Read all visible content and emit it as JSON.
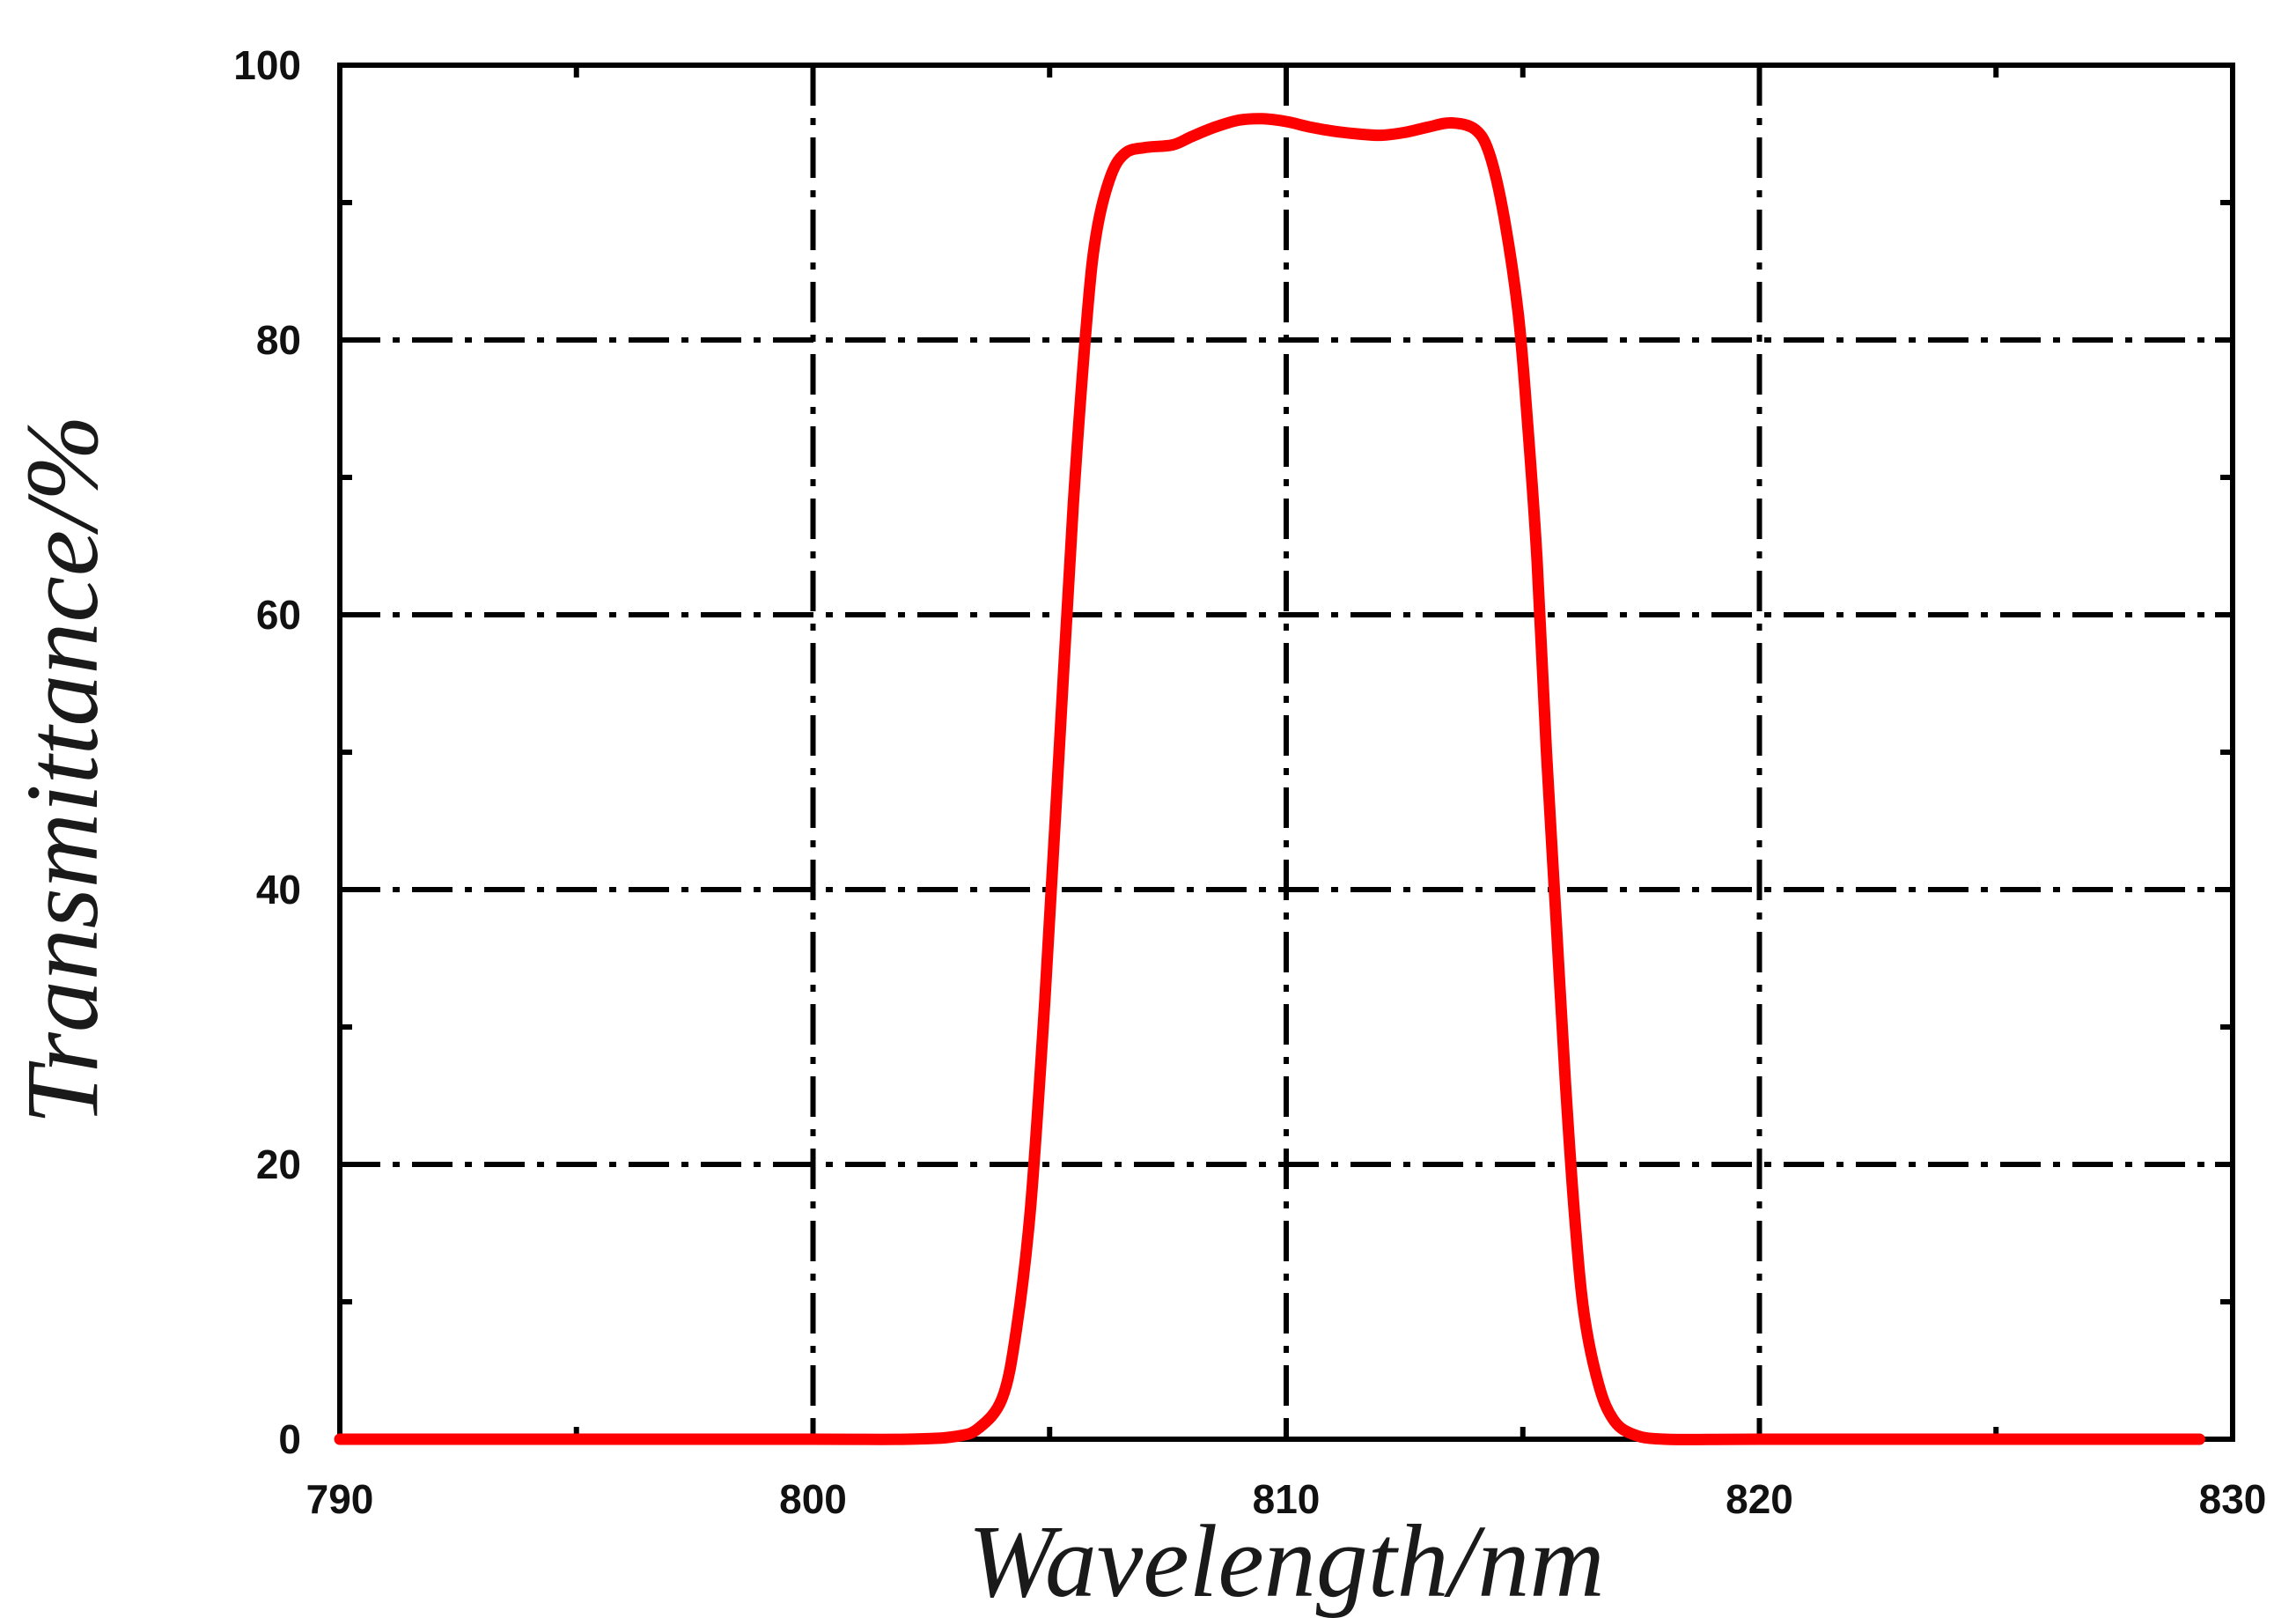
{
  "chart_data": {
    "type": "line",
    "title": "",
    "xlabel": "Wavelength/nm",
    "ylabel": "Transmittance/%",
    "xlim": [
      790,
      830
    ],
    "ylim": [
      0,
      100
    ],
    "x_ticks": [
      "790",
      "800",
      "810",
      "820",
      "830"
    ],
    "y_ticks": [
      "0",
      "20",
      "40",
      "60",
      "80",
      "100"
    ],
    "x_tick_values": [
      790,
      800,
      810,
      820,
      830
    ],
    "y_tick_values": [
      0,
      20,
      40,
      60,
      80,
      100
    ],
    "x_minor_tick_values": [
      795,
      805,
      815,
      825
    ],
    "y_minor_tick_values": [
      10,
      30,
      50,
      70,
      90
    ],
    "grid": true,
    "grid_style": "dash-dot",
    "legend": "none",
    "colors": {
      "series": "#ff0000",
      "axes": "#000000",
      "background": "#ffffff"
    },
    "series": [
      {
        "x": [
          790,
          795,
          800,
          802,
          803,
          803.5,
          804,
          804.3,
          804.6,
          804.9,
          805.2,
          805.5,
          805.8,
          806,
          806.3,
          806.6,
          807,
          807.6,
          808,
          808.5,
          809,
          809.5,
          810,
          810.5,
          811,
          811.5,
          812,
          812.5,
          813,
          813.5,
          814,
          814.3,
          814.6,
          814.9,
          815.1,
          815.3,
          815.5,
          815.7,
          815.9,
          816.1,
          816.3,
          816.6,
          816.9,
          817.3,
          818,
          820,
          825,
          829.3
        ],
        "y": [
          0,
          0,
          0,
          0,
          0.2,
          0.8,
          3,
          8,
          17,
          32,
          50,
          68,
          82,
          88,
          92,
          93.6,
          94,
          94.2,
          94.8,
          95.5,
          96,
          96.1,
          95.9,
          95.5,
          95.2,
          95,
          94.9,
          95.1,
          95.5,
          95.8,
          95.3,
          93.5,
          89,
          82,
          74,
          64,
          50,
          38,
          26,
          16,
          9,
          4,
          1.5,
          0.4,
          0,
          0,
          0,
          0
        ]
      }
    ]
  }
}
